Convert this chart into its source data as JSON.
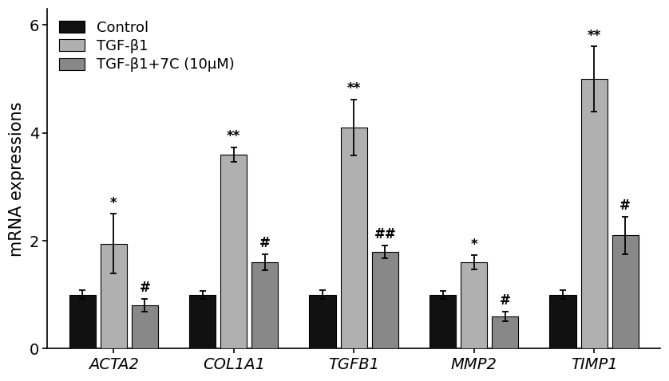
{
  "categories": [
    "ACTA2",
    "COL1A1",
    "TGFB1",
    "MMP2",
    "TIMP1"
  ],
  "groups": [
    "Control",
    "TGF-β1",
    "TGF-β1+7C (10μM)"
  ],
  "bar_colors": [
    "#111111",
    "#b0b0b0",
    "#888888"
  ],
  "bar_values": [
    [
      1.0,
      1.95,
      0.8
    ],
    [
      1.0,
      3.6,
      1.6
    ],
    [
      1.0,
      4.1,
      1.8
    ],
    [
      1.0,
      1.6,
      0.6
    ],
    [
      1.0,
      5.0,
      2.1
    ]
  ],
  "bar_errors": [
    [
      0.08,
      0.55,
      0.12
    ],
    [
      0.07,
      0.13,
      0.15
    ],
    [
      0.08,
      0.52,
      0.12
    ],
    [
      0.07,
      0.13,
      0.09
    ],
    [
      0.08,
      0.6,
      0.35
    ]
  ],
  "annotations": [
    [
      "",
      "*",
      "#"
    ],
    [
      "",
      "**",
      "#"
    ],
    [
      "",
      "**",
      "##"
    ],
    [
      "",
      "*",
      "#"
    ],
    [
      "",
      "**",
      "#"
    ]
  ],
  "ylabel": "mRNA expressions",
  "ylim": [
    0,
    6.3
  ],
  "yticks": [
    0,
    2,
    4,
    6
  ],
  "bar_width": 0.22,
  "bar_gap": 0.04,
  "legend_colors": [
    "#111111",
    "#b0b0b0",
    "#888888"
  ],
  "legend_labels": [
    "Control",
    "TGF-β1",
    "TGF-β1+7C (10μM)"
  ],
  "edge_color": "#000000",
  "annotation_fontsize": 12,
  "axis_fontsize": 15,
  "tick_fontsize": 14,
  "legend_fontsize": 13
}
